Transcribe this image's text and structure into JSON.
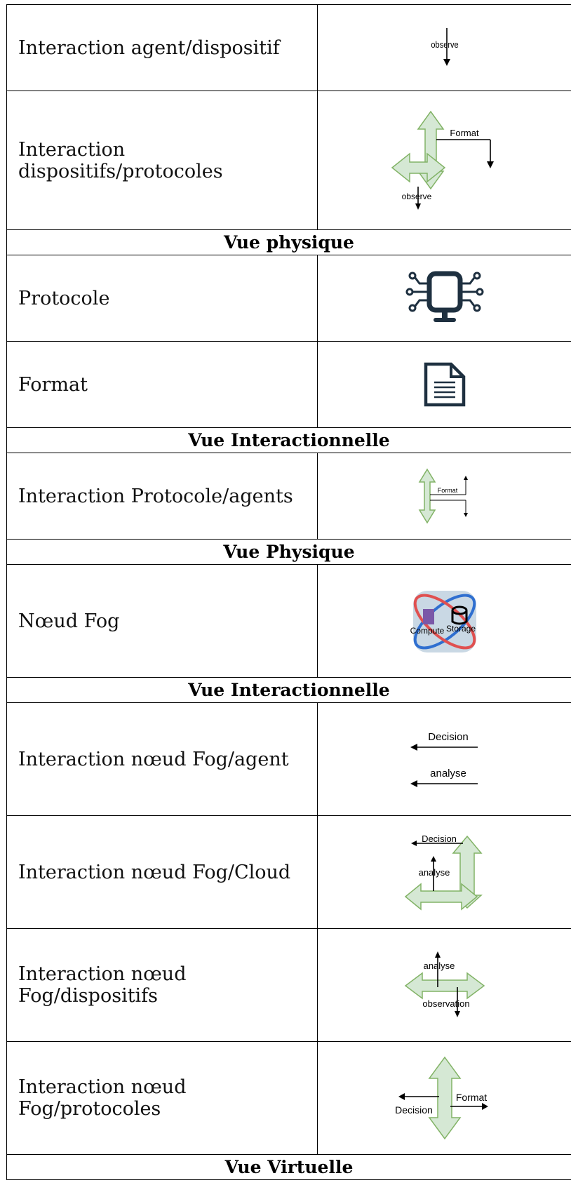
{
  "table": {
    "rows": [
      {
        "label": "Interaction agent/dispositif",
        "icon_texts": [
          "observe"
        ]
      },
      {
        "label": "Interaction dispositifs/protocoles",
        "icon_texts": [
          "Format",
          "observe"
        ]
      },
      {
        "section": "Vue physique"
      },
      {
        "label": "Protocole"
      },
      {
        "label": "Format"
      },
      {
        "section": "Vue Interactionnelle"
      },
      {
        "label": "Interaction Protocole/agents",
        "icon_texts": [
          "Format"
        ]
      },
      {
        "section": "Vue Physique"
      },
      {
        "label": "Nœud Fog",
        "icon_texts": [
          "Compute",
          "Storage"
        ]
      },
      {
        "section": "Vue Interactionnelle"
      },
      {
        "label": "Interaction nœud Fog/agent",
        "icon_texts": [
          "Decision",
          "analyse"
        ]
      },
      {
        "label": "Interaction nœud Fog/Cloud",
        "icon_texts": [
          "Decision",
          "analyse"
        ]
      },
      {
        "label": "Interaction nœud Fog/dispositifs",
        "icon_texts": [
          "analyse",
          "observation"
        ]
      },
      {
        "label": "Interaction nœud Fog/protocoles",
        "icon_texts": [
          "Format",
          "Decision"
        ]
      },
      {
        "section": "Vue Virtuelle"
      }
    ]
  }
}
